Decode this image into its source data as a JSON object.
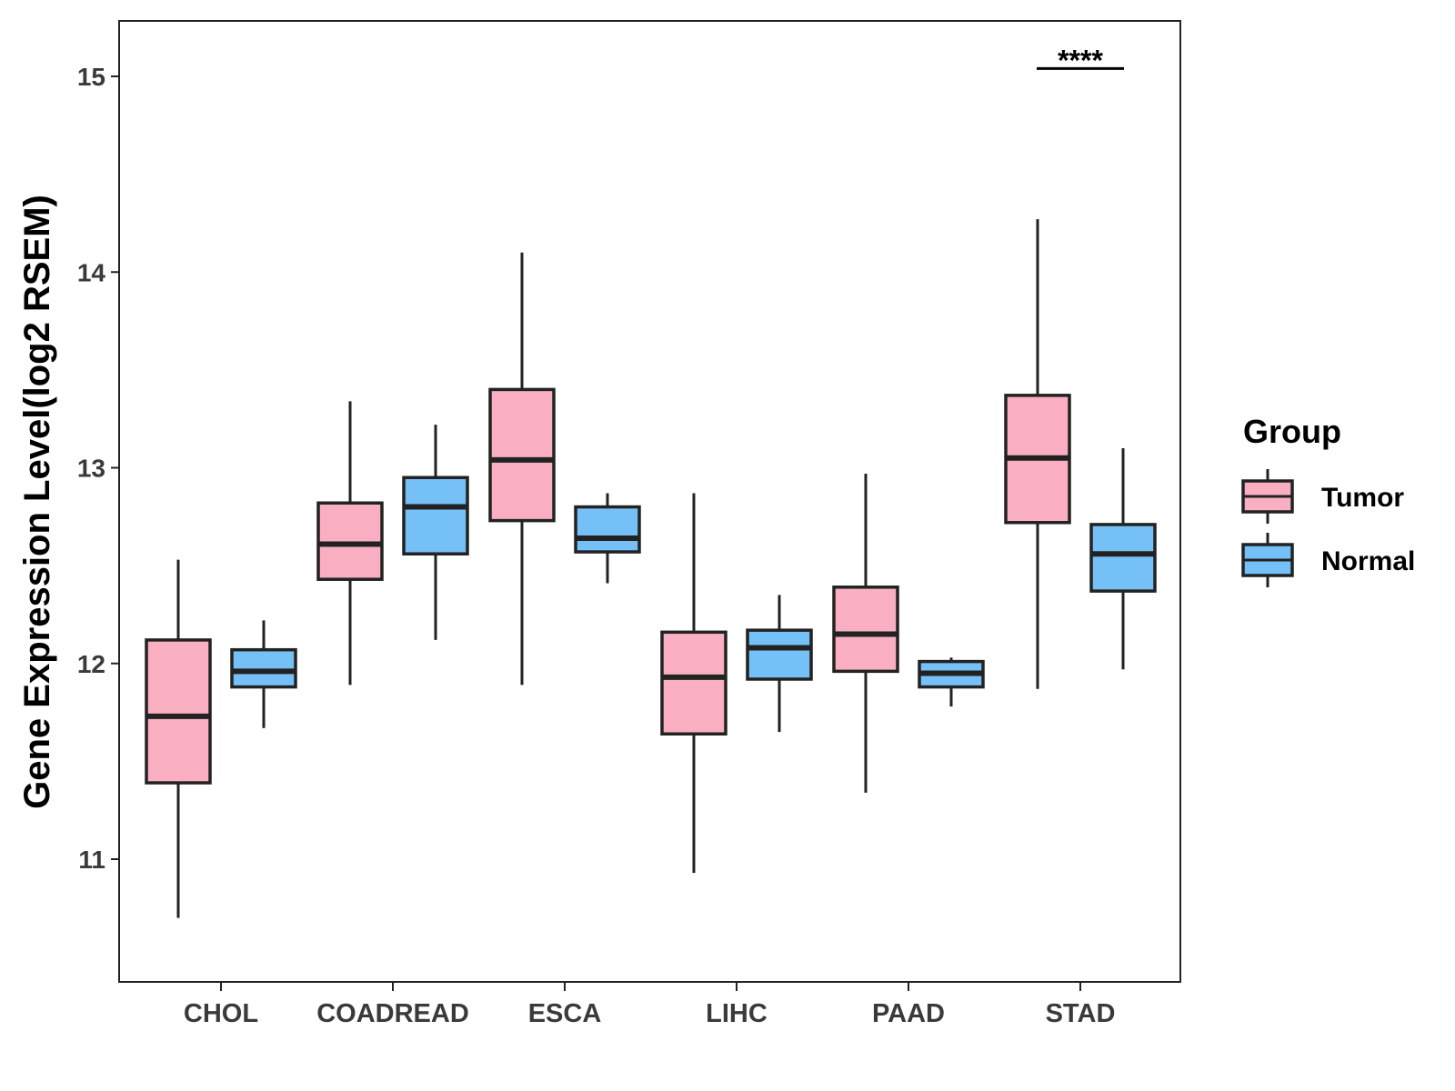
{
  "chart_data": {
    "type": "boxplot",
    "title": "",
    "xlabel": "",
    "ylabel": "Gene Expression Level(log2 RSEM)",
    "ylim": [
      10.4,
      15.3
    ],
    "yticks": [
      11,
      12,
      13,
      14,
      15
    ],
    "categories": [
      "CHOL",
      "COADREAD",
      "ESCA",
      "LIHC",
      "PAAD",
      "STAD"
    ],
    "legend": {
      "title": "Group",
      "position": "right"
    },
    "series": [
      {
        "name": "Tumor",
        "color": "#F9AFC1",
        "boxes": [
          {
            "min": 10.7,
            "q1": 11.39,
            "median": 11.73,
            "q3": 12.12,
            "max": 12.53
          },
          {
            "min": 11.89,
            "q1": 12.43,
            "median": 12.61,
            "q3": 12.82,
            "max": 13.34
          },
          {
            "min": 11.89,
            "q1": 12.73,
            "median": 13.04,
            "q3": 13.4,
            "max": 14.1
          },
          {
            "min": 10.93,
            "q1": 11.64,
            "median": 11.93,
            "q3": 12.16,
            "max": 12.87
          },
          {
            "min": 11.34,
            "q1": 11.96,
            "median": 12.15,
            "q3": 12.39,
            "max": 12.97
          },
          {
            "min": 11.87,
            "q1": 12.72,
            "median": 13.05,
            "q3": 13.37,
            "max": 14.27
          }
        ]
      },
      {
        "name": "Normal",
        "color": "#75C0F6",
        "boxes": [
          {
            "min": 11.67,
            "q1": 11.88,
            "median": 11.96,
            "q3": 12.07,
            "max": 12.22
          },
          {
            "min": 12.12,
            "q1": 12.56,
            "median": 12.8,
            "q3": 12.95,
            "max": 13.22
          },
          {
            "min": 12.41,
            "q1": 12.57,
            "median": 12.64,
            "q3": 12.8,
            "max": 12.87
          },
          {
            "min": 11.65,
            "q1": 11.92,
            "median": 12.08,
            "q3": 12.17,
            "max": 12.35
          },
          {
            "min": 11.78,
            "q1": 11.88,
            "median": 11.95,
            "q3": 12.01,
            "max": 12.03
          },
          {
            "min": 11.97,
            "q1": 12.37,
            "median": 12.56,
            "q3": 12.71,
            "max": 13.1
          }
        ]
      }
    ],
    "annotations": [
      {
        "category": "STAD",
        "label": "****",
        "y": 15.04
      }
    ]
  }
}
